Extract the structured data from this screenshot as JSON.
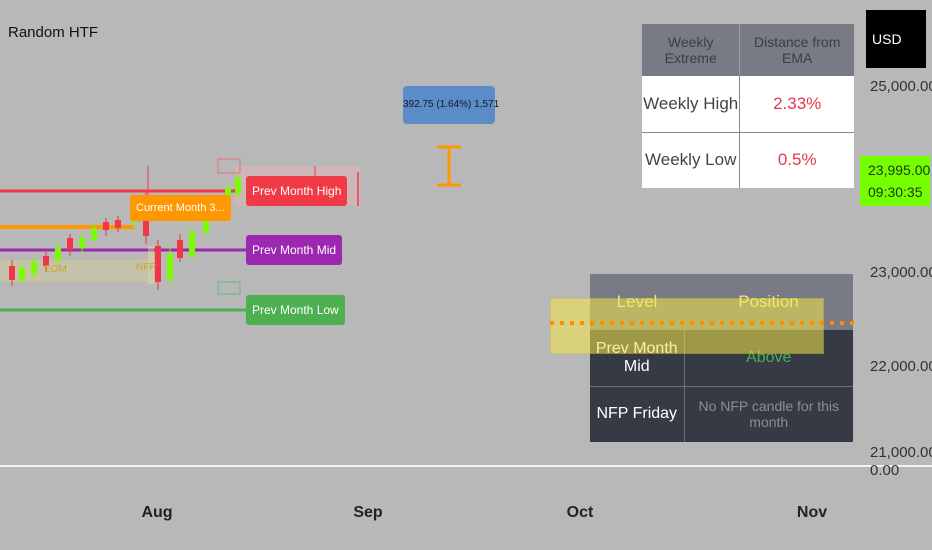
{
  "chart": {
    "symbol_title": "Random HTF",
    "currency": "USD"
  },
  "price_axis": {
    "labels": [
      "25,000.00",
      "23,000.00",
      "22,000.00",
      "21,000.00",
      "0.00"
    ],
    "current_price": "23,995.00",
    "countdown": "09:30:35",
    "current_price_bg": "#76ff03"
  },
  "time_axis": {
    "labels": [
      "Aug",
      "Sep",
      "Oct",
      "Nov"
    ]
  },
  "measure_tooltip": "392.75 (1.64%) 1,571",
  "level_labels": {
    "prev_month_high": "Prev Month High",
    "prev_month_mid": "Prev Month Mid",
    "prev_month_low": "Prev Month Low",
    "current_month": "Current Month 3...",
    "tag_eom": "EOM",
    "tag_nfp": "NFP"
  },
  "colors": {
    "high": "#f03a47",
    "mid": "#9c27b0",
    "low": "#4caf50",
    "current": "#ff9800",
    "bull": "#7cfc00",
    "bear": "#f23645"
  },
  "weekly_table": {
    "headers": [
      "Weekly Extreme",
      "Distance from EMA"
    ],
    "rows": [
      {
        "label": "Weekly High",
        "value": "2.33%"
      },
      {
        "label": "Weekly Low",
        "value": "0.5%"
      }
    ]
  },
  "monthly_table": {
    "headers": [
      "Level",
      "Position"
    ],
    "rows": [
      {
        "label": "Prev Month Mid",
        "value": "Above"
      },
      {
        "label": "NFP Friday",
        "value": "No NFP candle for this month"
      }
    ]
  }
}
